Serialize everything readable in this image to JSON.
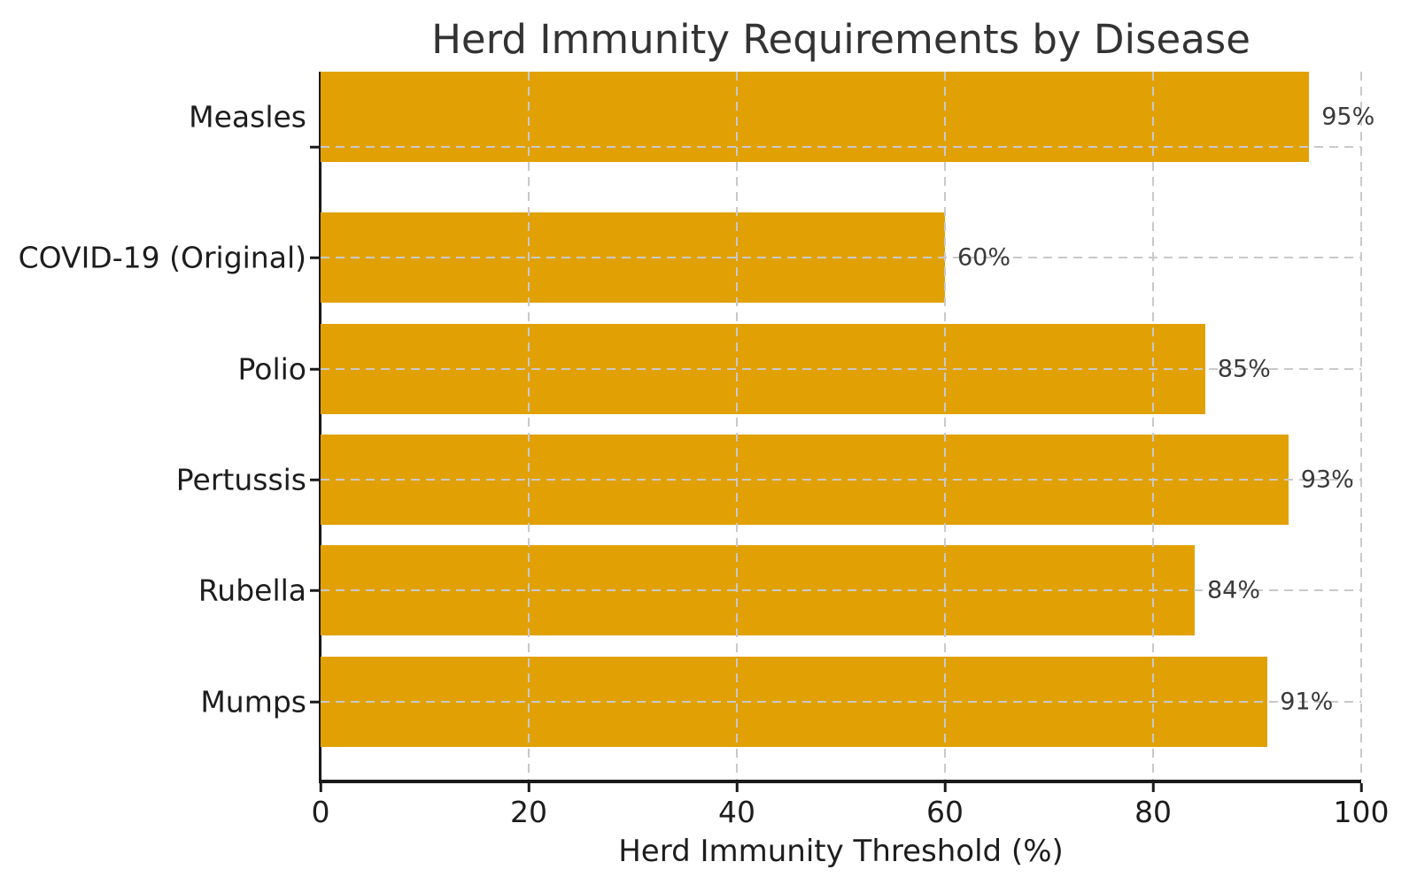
{
  "chart_data": {
    "type": "bar",
    "orientation": "horizontal",
    "title": "Herd Immunity Requirements by Disease",
    "xlabel": "Herd Immunity Threshold (%)",
    "ylabel": "",
    "categories": [
      "COVID-19 (Original)",
      "Polio",
      "Pertussis",
      "Rubella",
      "Mumps",
      "Measles"
    ],
    "values": [
      60,
      85,
      93,
      84,
      91,
      95
    ],
    "value_labels": [
      "60%",
      "85%",
      "93%",
      "84%",
      "91%",
      "95%"
    ],
    "xlim": [
      0,
      100
    ],
    "xticks": [
      0,
      20,
      40,
      60,
      80,
      100
    ],
    "xtick_labels": [
      "0",
      "20",
      "40",
      "60",
      "80",
      "100"
    ],
    "grid": "dashed vertical at x ticks and dashed horizontal at category centers, drawn over bars",
    "legend": "none",
    "colors": {
      "bar": "#E1A105",
      "grid": "#C9C9C9",
      "axis": "#1A1A1A",
      "title_text": "#333333",
      "value_text": "#3A3A3A"
    }
  }
}
